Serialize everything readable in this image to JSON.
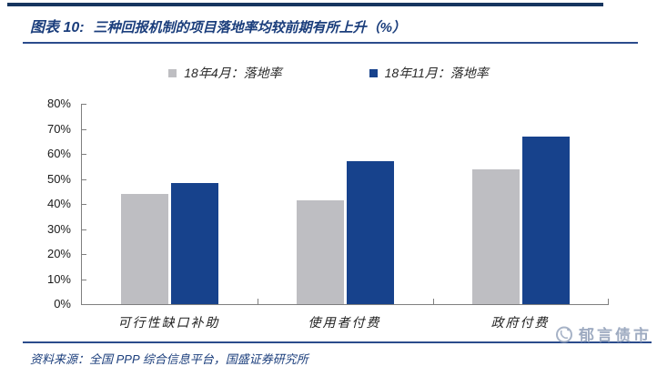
{
  "figure": {
    "title_prefix": "图表 10:",
    "title_text": "三种回报机制的项目落地率均较前期有所上升（%）",
    "source_text": "资料来源：全国 PPP 综合信息平台，国盛证券研究所",
    "watermark_text": "郁言债市",
    "accent_color": "#1b3e7c"
  },
  "chart_data": {
    "type": "bar",
    "title": "三种回报机制的项目落地率均较前期有所上升（%）",
    "categories": [
      "可行性缺口补助",
      "使用者付费",
      "政府付费"
    ],
    "series": [
      {
        "name": "18年4月：落地率",
        "color": "#bebec2",
        "values": [
          44,
          41.5,
          54
        ]
      },
      {
        "name": "18年11月：落地率",
        "color": "#17428c",
        "values": [
          48.5,
          57,
          67
        ]
      }
    ],
    "xlabel": "",
    "ylabel": "",
    "ylim": [
      0,
      80
    ],
    "ytick_values": [
      0,
      10,
      20,
      30,
      40,
      50,
      60,
      70,
      80
    ],
    "ytick_labels": [
      "0%",
      "10%",
      "20%",
      "30%",
      "40%",
      "50%",
      "60%",
      "70%",
      "80%"
    ],
    "grid": false,
    "legend_position": "top"
  }
}
